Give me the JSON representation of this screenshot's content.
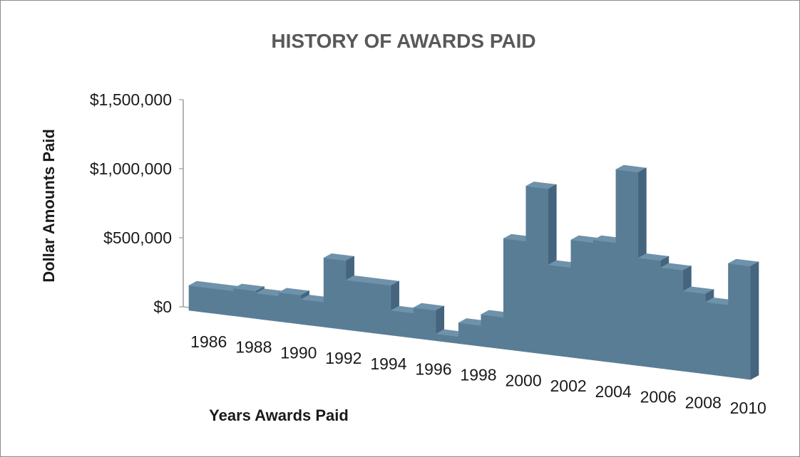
{
  "colors": {
    "bar_front": "#5a7d96",
    "bar_top": "#6f92ab",
    "bar_side": "#44657d",
    "axis": "#9a9a9a",
    "title": "#595959"
  },
  "chart_data": {
    "type": "bar",
    "style": "3d-column",
    "title": "HISTORY OF AWARDS PAID",
    "xlabel": "Years Awards Paid",
    "ylabel": "Dollar Amounts Paid",
    "ylim": [
      0,
      1500000
    ],
    "y_ticks": [
      "$0",
      "$500,000",
      "$1,000,000",
      "$1,500,000"
    ],
    "y_tick_values": [
      0,
      500000,
      1000000,
      1500000
    ],
    "x_tick_labels": [
      "1986",
      "1988",
      "1990",
      "1992",
      "1994",
      "1996",
      "1998",
      "2000",
      "2002",
      "2004",
      "2006",
      "2008",
      "2010"
    ],
    "categories": [
      "1986",
      "1987",
      "1988",
      "1989",
      "1990",
      "1991",
      "1992",
      "1993",
      "1994",
      "1995",
      "1996",
      "1997",
      "1998",
      "1999",
      "2000",
      "2001",
      "2002",
      "2003",
      "2004",
      "2005",
      "2006",
      "2007",
      "2008",
      "2009",
      "2010"
    ],
    "values": [
      180000,
      180000,
      200000,
      185000,
      210000,
      180000,
      500000,
      360000,
      360000,
      180000,
      220000,
      50000,
      150000,
      230000,
      800000,
      1200000,
      650000,
      850000,
      870000,
      1400000,
      780000,
      730000,
      580000,
      520000,
      820000
    ],
    "grid": false,
    "legend": "none"
  }
}
